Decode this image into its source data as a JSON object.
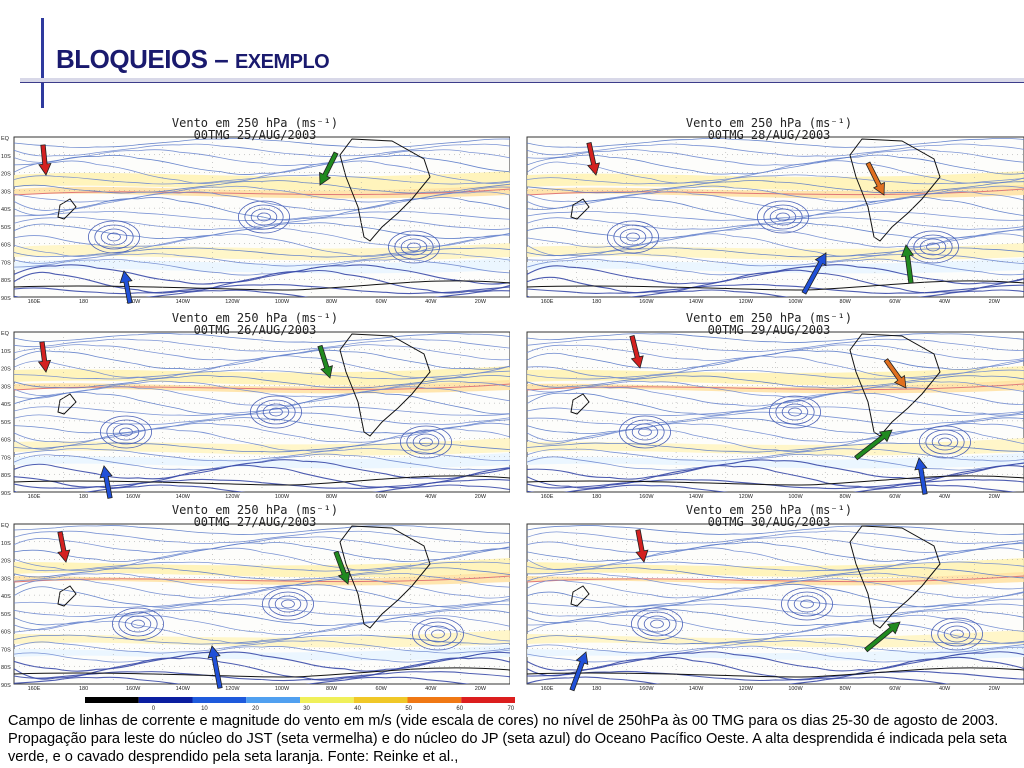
{
  "slide": {
    "title_main": "BLOQUEIOS –",
    "title_small": "EXEMPLO"
  },
  "panels": [
    {
      "line1": "Vento em 250 hPa (ms⁻¹)",
      "line2": "00TMG 25/AUG/2003"
    },
    {
      "line1": "Vento em 250 hPa (ms⁻¹)",
      "line2": "00TMG 28/AUG/2003"
    },
    {
      "line1": "Vento em 250 hPa (ms⁻¹)",
      "line2": "00TMG 26/AUG/2003"
    },
    {
      "line1": "Vento em 250 hPa (ms⁻¹)",
      "line2": "00TMG 29/AUG/2003"
    },
    {
      "line1": "Vento em 250 hPa (ms⁻¹)",
      "line2": "00TMG 27/AUG/2003"
    },
    {
      "line1": "Vento em 250 hPa (ms⁻¹)",
      "line2": "00TMG 30/AUG/2003"
    }
  ],
  "map_axes": {
    "lat_labels": [
      "EQ",
      "10S",
      "20S",
      "30S",
      "40S",
      "50S",
      "60S",
      "70S",
      "80S",
      "90S"
    ],
    "lon_labels": [
      "160E",
      "180",
      "160W",
      "140W",
      "120W",
      "100W",
      "80W",
      "60W",
      "40W",
      "20W"
    ]
  },
  "colorbar": {
    "ticks": [
      "0",
      "10",
      "20",
      "30",
      "40",
      "50",
      "60",
      "70"
    ],
    "colors": [
      "#000000",
      "#0a1ea0",
      "#1e5adc",
      "#50a0f0",
      "#f0f05a",
      "#f0c828",
      "#f07814",
      "#dc1e1e"
    ]
  },
  "arrow_colors": {
    "jst": "#d42020",
    "jp": "#2050d8",
    "high": "#208a20",
    "trough": "#e07020"
  },
  "caption": "Campo de linhas de corrente e magnitude do vento em m/s (vide escala de cores) no nível de 250hPa às 00 TMG para os dias 25-30 de agosto de 2003. Propagação para leste do núcleo do JST (seta vermelha) e do núcleo do JP (seta azul) do Oceano Pacífico Oeste. A alta desprendida é indicada pela seta verde, e o cavado desprendido pela seta laranja. Fonte: Reinke et al.,"
}
